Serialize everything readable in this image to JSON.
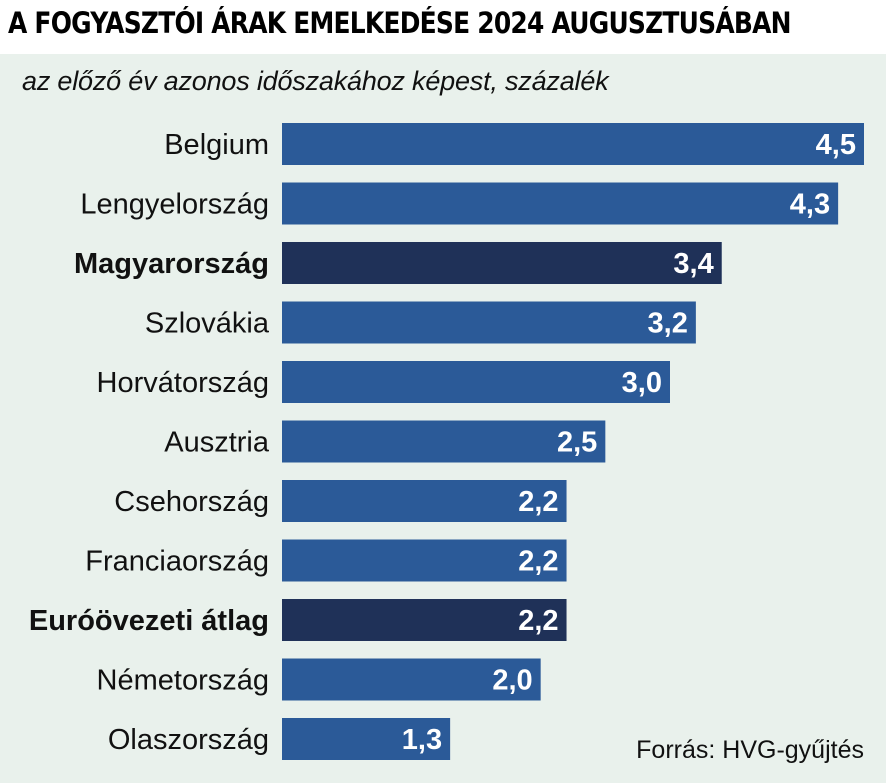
{
  "header": {
    "title": "A FOGYASZTÓI ÁRAK EMELKEDÉSE 2024 AUGUSZTUSÁBAN",
    "subtitle": "az előző év azonos időszakához képest, százalék",
    "source": "Forrás: HVG-gyűjtés"
  },
  "colors": {
    "bar": "#2b5a98",
    "highlight_bar": "#1f3158",
    "panel_background": "#e9f1ec",
    "value_text": "#ffffff"
  },
  "chart_data": {
    "type": "bar",
    "orientation": "horizontal",
    "title": "A FOGYASZTÓI ÁRAK EMELKEDÉSE 2024 AUGUSZTUSÁBAN",
    "subtitle": "az előző év azonos időszakához képest, százalék",
    "categories": [
      "Belgium",
      "Lengyelország",
      "Magyarország",
      "Szlovákia",
      "Horvátország",
      "Ausztria",
      "Csehország",
      "Franciaország",
      "Euróövezeti átlag",
      "Németország",
      "Olaszország"
    ],
    "values": [
      4.5,
      4.3,
      3.4,
      3.2,
      3.0,
      2.5,
      2.2,
      2.2,
      2.2,
      2.0,
      1.3
    ],
    "value_labels": [
      "4,5",
      "4,3",
      "3,4",
      "3,2",
      "3,0",
      "2,5",
      "2,2",
      "2,2",
      "2,2",
      "2,0",
      "1,3"
    ],
    "highlighted": [
      "Magyarország",
      "Euróövezeti átlag"
    ],
    "xlim": [
      0,
      4.5
    ],
    "grid": false,
    "legend": "none"
  }
}
